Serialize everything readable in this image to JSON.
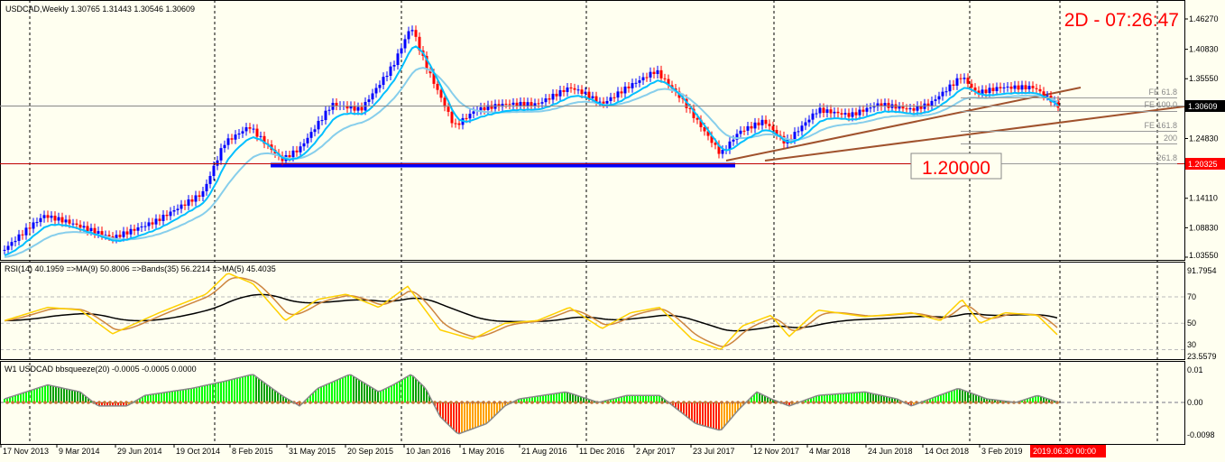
{
  "header": {
    "symbol_info": "USDCAD,Weekly  1.30765 1.31443 1.30546 1.30609",
    "timer": "2D - 07:26:47",
    "level_box": "1.20000"
  },
  "colors": {
    "up": "#0000ff",
    "down": "#ff0000",
    "ema_fast": "#00bfff",
    "ema_slow": "#87ceeb",
    "rsi": "#ffd000",
    "rsi_ma": "#cd853f",
    "bands": "#000000",
    "trend": "#a0522d",
    "sq_up": "#00ff00",
    "sq_dn": "#ff3000"
  },
  "chart_data": [
    {
      "type": "bar",
      "name": "price",
      "yticks": [
        "1.46270",
        "1.40830",
        "1.35550",
        "1.30609",
        "1.24830",
        "1.20325",
        "1.14110",
        "1.08830",
        "1.03550"
      ],
      "ylim": [
        1.0355,
        1.4627
      ],
      "current_price": "1.30609",
      "marked_price": "1.20325",
      "fib_labels": [
        "FE 61.8",
        "FE 100.0",
        "FE 161.8",
        "200",
        "261.8"
      ],
      "closes": [
        [
          "2013-11-17",
          1.05
        ],
        [
          "2014-01-05",
          1.09
        ],
        [
          "2014-02-02",
          1.11
        ],
        [
          "2014-03-16",
          1.1
        ],
        [
          "2014-06-15",
          1.07
        ],
        [
          "2014-09-07",
          1.1
        ],
        [
          "2014-12-07",
          1.15
        ],
        [
          "2015-01-18",
          1.24
        ],
        [
          "2015-03-08",
          1.27
        ],
        [
          "2015-05-10",
          1.21
        ],
        [
          "2015-06-14",
          1.23
        ],
        [
          "2015-08-16",
          1.31
        ],
        [
          "2015-10-11",
          1.3
        ],
        [
          "2015-12-13",
          1.38
        ],
        [
          "2016-01-17",
          1.45
        ],
        [
          "2016-02-14",
          1.38
        ],
        [
          "2016-04-10",
          1.27
        ],
        [
          "2016-05-22",
          1.3
        ],
        [
          "2016-07-17",
          1.31
        ],
        [
          "2016-09-18",
          1.31
        ],
        [
          "2016-11-20",
          1.34
        ],
        [
          "2016-12-18",
          1.33
        ],
        [
          "2017-01-22",
          1.31
        ],
        [
          "2017-03-12",
          1.34
        ],
        [
          "2017-05-07",
          1.37
        ],
        [
          "2017-06-25",
          1.32
        ],
        [
          "2017-09-10",
          1.22
        ],
        [
          "2017-10-15",
          1.26
        ],
        [
          "2017-12-03",
          1.28
        ],
        [
          "2018-01-14",
          1.24
        ],
        [
          "2018-03-18",
          1.3
        ],
        [
          "2018-05-20",
          1.29
        ],
        [
          "2018-07-15",
          1.31
        ],
        [
          "2018-09-16",
          1.3
        ],
        [
          "2018-10-21",
          1.31
        ],
        [
          "2018-12-23",
          1.36
        ],
        [
          "2019-01-20",
          1.33
        ],
        [
          "2019-03-10",
          1.34
        ],
        [
          "2019-05-12",
          1.34
        ],
        [
          "2019-06-30",
          1.306
        ]
      ]
    },
    {
      "type": "line",
      "title": "RSI(14) 40.1959  =>MA(9) 50.8006  =>Bands(35) 56.2214  =>MA(5) 45.4035",
      "ylim": [
        23.5579,
        91.7954
      ],
      "yticks": [
        "91.7954",
        "70",
        "50",
        "30",
        "23.5579"
      ],
      "values": [
        [
          "2013-11-17",
          52
        ],
        [
          "2014-02-09",
          62
        ],
        [
          "2014-04-13",
          60
        ],
        [
          "2014-06-15",
          42
        ],
        [
          "2014-09-14",
          58
        ],
        [
          "2014-12-14",
          72
        ],
        [
          "2015-01-25",
          88
        ],
        [
          "2015-03-15",
          80
        ],
        [
          "2015-05-17",
          52
        ],
        [
          "2015-07-19",
          68
        ],
        [
          "2015-09-13",
          72
        ],
        [
          "2015-11-15",
          62
        ],
        [
          "2016-01-10",
          78
        ],
        [
          "2016-03-13",
          45
        ],
        [
          "2016-05-15",
          38
        ],
        [
          "2016-07-17",
          50
        ],
        [
          "2016-09-18",
          52
        ],
        [
          "2016-11-20",
          62
        ],
        [
          "2017-01-22",
          46
        ],
        [
          "2017-03-19",
          58
        ],
        [
          "2017-05-14",
          62
        ],
        [
          "2017-07-16",
          38
        ],
        [
          "2017-09-10",
          30
        ],
        [
          "2017-10-22",
          48
        ],
        [
          "2017-12-17",
          56
        ],
        [
          "2018-01-21",
          40
        ],
        [
          "2018-03-18",
          60
        ],
        [
          "2018-06-17",
          55
        ],
        [
          "2018-09-16",
          58
        ],
        [
          "2018-11-11",
          52
        ],
        [
          "2018-12-23",
          68
        ],
        [
          "2019-01-27",
          50
        ],
        [
          "2019-03-17",
          58
        ],
        [
          "2019-05-19",
          56
        ],
        [
          "2019-06-30",
          40
        ]
      ]
    },
    {
      "type": "bar",
      "title": "W1 USDCAD bbsqueeze(20) -0.0005 -0.0005 0.0000",
      "ylim": [
        -0.0098,
        0.01
      ],
      "yticks": [
        "0.01",
        "0.00",
        "-0.0098"
      ],
      "values": [
        [
          "2013-11-17",
          0.001
        ],
        [
          "2014-02-09",
          0.005
        ],
        [
          "2014-04-13",
          0.003
        ],
        [
          "2014-05-18",
          -0.001
        ],
        [
          "2014-07-13",
          -0.001
        ],
        [
          "2014-08-17",
          0.002
        ],
        [
          "2014-11-16",
          0.004
        ],
        [
          "2015-01-18",
          0.006
        ],
        [
          "2015-03-15",
          0.008
        ],
        [
          "2015-05-10",
          0.002
        ],
        [
          "2015-06-14",
          -0.001
        ],
        [
          "2015-07-19",
          0.004
        ],
        [
          "2015-09-20",
          0.008
        ],
        [
          "2015-11-15",
          0.003
        ],
        [
          "2015-12-13",
          0.005
        ],
        [
          "2016-01-17",
          0.008
        ],
        [
          "2016-02-14",
          0.004
        ],
        [
          "2016-03-13",
          -0.004
        ],
        [
          "2016-04-17",
          -0.009
        ],
        [
          "2016-06-12",
          -0.006
        ],
        [
          "2016-07-17",
          -0.001
        ],
        [
          "2016-08-14",
          0.001
        ],
        [
          "2016-11-13",
          0.003
        ],
        [
          "2017-01-15",
          0.0
        ],
        [
          "2017-03-12",
          0.002
        ],
        [
          "2017-05-14",
          0.002
        ],
        [
          "2017-06-18",
          -0.002
        ],
        [
          "2017-07-23",
          -0.006
        ],
        [
          "2017-09-10",
          -0.008
        ],
        [
          "2017-10-15",
          -0.002
        ],
        [
          "2017-11-19",
          0.003
        ],
        [
          "2017-12-17",
          0.001
        ],
        [
          "2018-01-21",
          -0.001
        ],
        [
          "2018-03-18",
          0.002
        ],
        [
          "2018-06-17",
          0.003
        ],
        [
          "2018-08-19",
          0.001
        ],
        [
          "2018-09-16",
          -0.001
        ],
        [
          "2018-10-21",
          0.001
        ],
        [
          "2018-12-16",
          0.004
        ],
        [
          "2019-02-10",
          0.001
        ],
        [
          "2019-04-07",
          0.0
        ],
        [
          "2019-05-19",
          0.002
        ],
        [
          "2019-06-30",
          0.0
        ]
      ]
    }
  ],
  "xaxis": {
    "labels": [
      "17 Nov 2013",
      "9 Mar 2014",
      "29 Jun 2014",
      "19 Oct 2014",
      "8 Feb 2015",
      "31 May 2015",
      "20 Sep 2015",
      "10 Jan 2016",
      "1 May 2016",
      "21 Aug 2016",
      "11 Dec 2016",
      "2 Apr 2017",
      "23 Jul 2017",
      "12 Nov 2017",
      "4 Mar 2018",
      "24 Jun 2018",
      "14 Oct 2018",
      "3 Feb 2019"
    ],
    "current": "2019.06.30 00:00"
  }
}
